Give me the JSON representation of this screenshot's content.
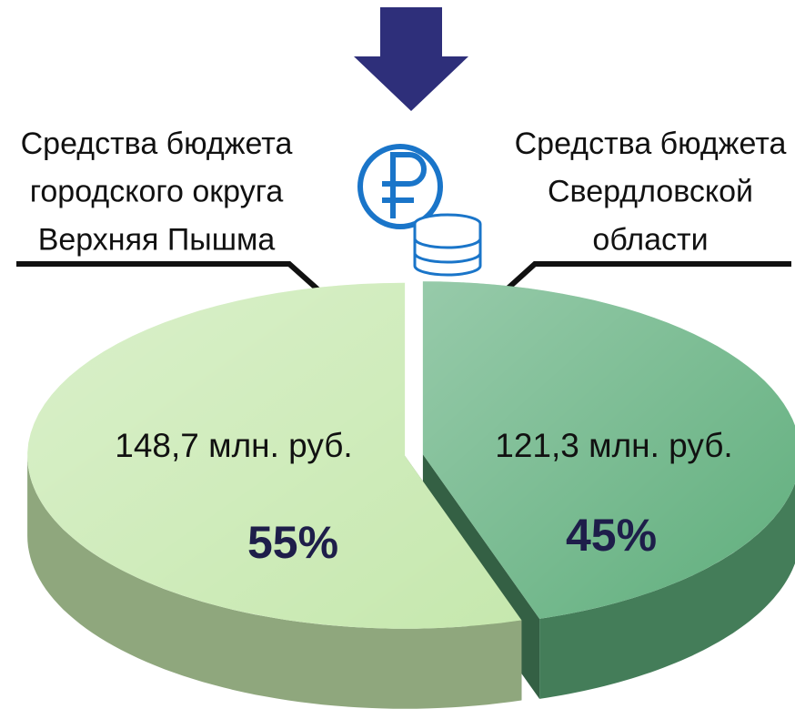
{
  "chart_data": {
    "type": "pie",
    "categories": [
      "Средства бюджета\nгородского округа\nВерхняя Пышма",
      "Средства бюджета\nСвердловской\nобласти"
    ],
    "values": [
      55,
      45
    ],
    "value_labels": [
      "55%",
      "45%"
    ],
    "amounts": [
      148.7,
      121.3
    ],
    "amount_labels": [
      "148,7 млн. руб.",
      "121,3 млн. руб."
    ],
    "colors": [
      "#c6e8ae",
      "#5fae7c"
    ]
  }
}
